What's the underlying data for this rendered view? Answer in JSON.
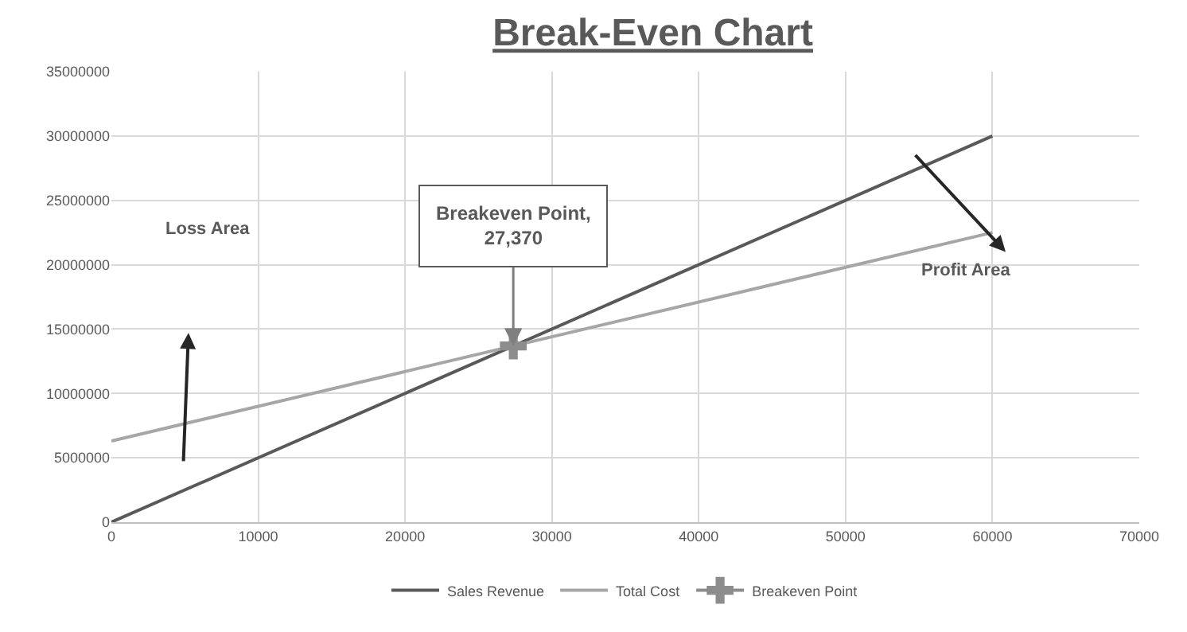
{
  "chart_data": {
    "type": "line",
    "title": "Break-Even Chart",
    "series": [
      {
        "name": "Sales Revenue",
        "color": "#595959",
        "x": [
          0,
          60000
        ],
        "values": [
          0,
          30000000
        ],
        "marker": "none"
      },
      {
        "name": "Total Cost",
        "color": "#a6a6a6",
        "x": [
          0,
          60000
        ],
        "values": [
          6300000,
          22500000
        ],
        "marker": "none"
      },
      {
        "name": "Breakeven Point",
        "color": "#8c8c8c",
        "x": [
          27370
        ],
        "values": [
          13685000
        ],
        "marker": "cross"
      }
    ],
    "xlim": [
      0,
      70000
    ],
    "xticks": [
      0,
      10000,
      20000,
      30000,
      40000,
      50000,
      60000,
      70000
    ],
    "ylim": [
      0,
      35000000
    ],
    "yticks": [
      0,
      5000000,
      10000000,
      15000000,
      20000000,
      25000000,
      30000000,
      35000000
    ],
    "grid": true,
    "legend": "bottom",
    "line_style": "solid",
    "annotations": [
      {
        "text": "Breakeven Point,\n27,370",
        "x": 27370,
        "y": 13685000
      },
      "Loss Area",
      "Profit Area"
    ]
  }
}
